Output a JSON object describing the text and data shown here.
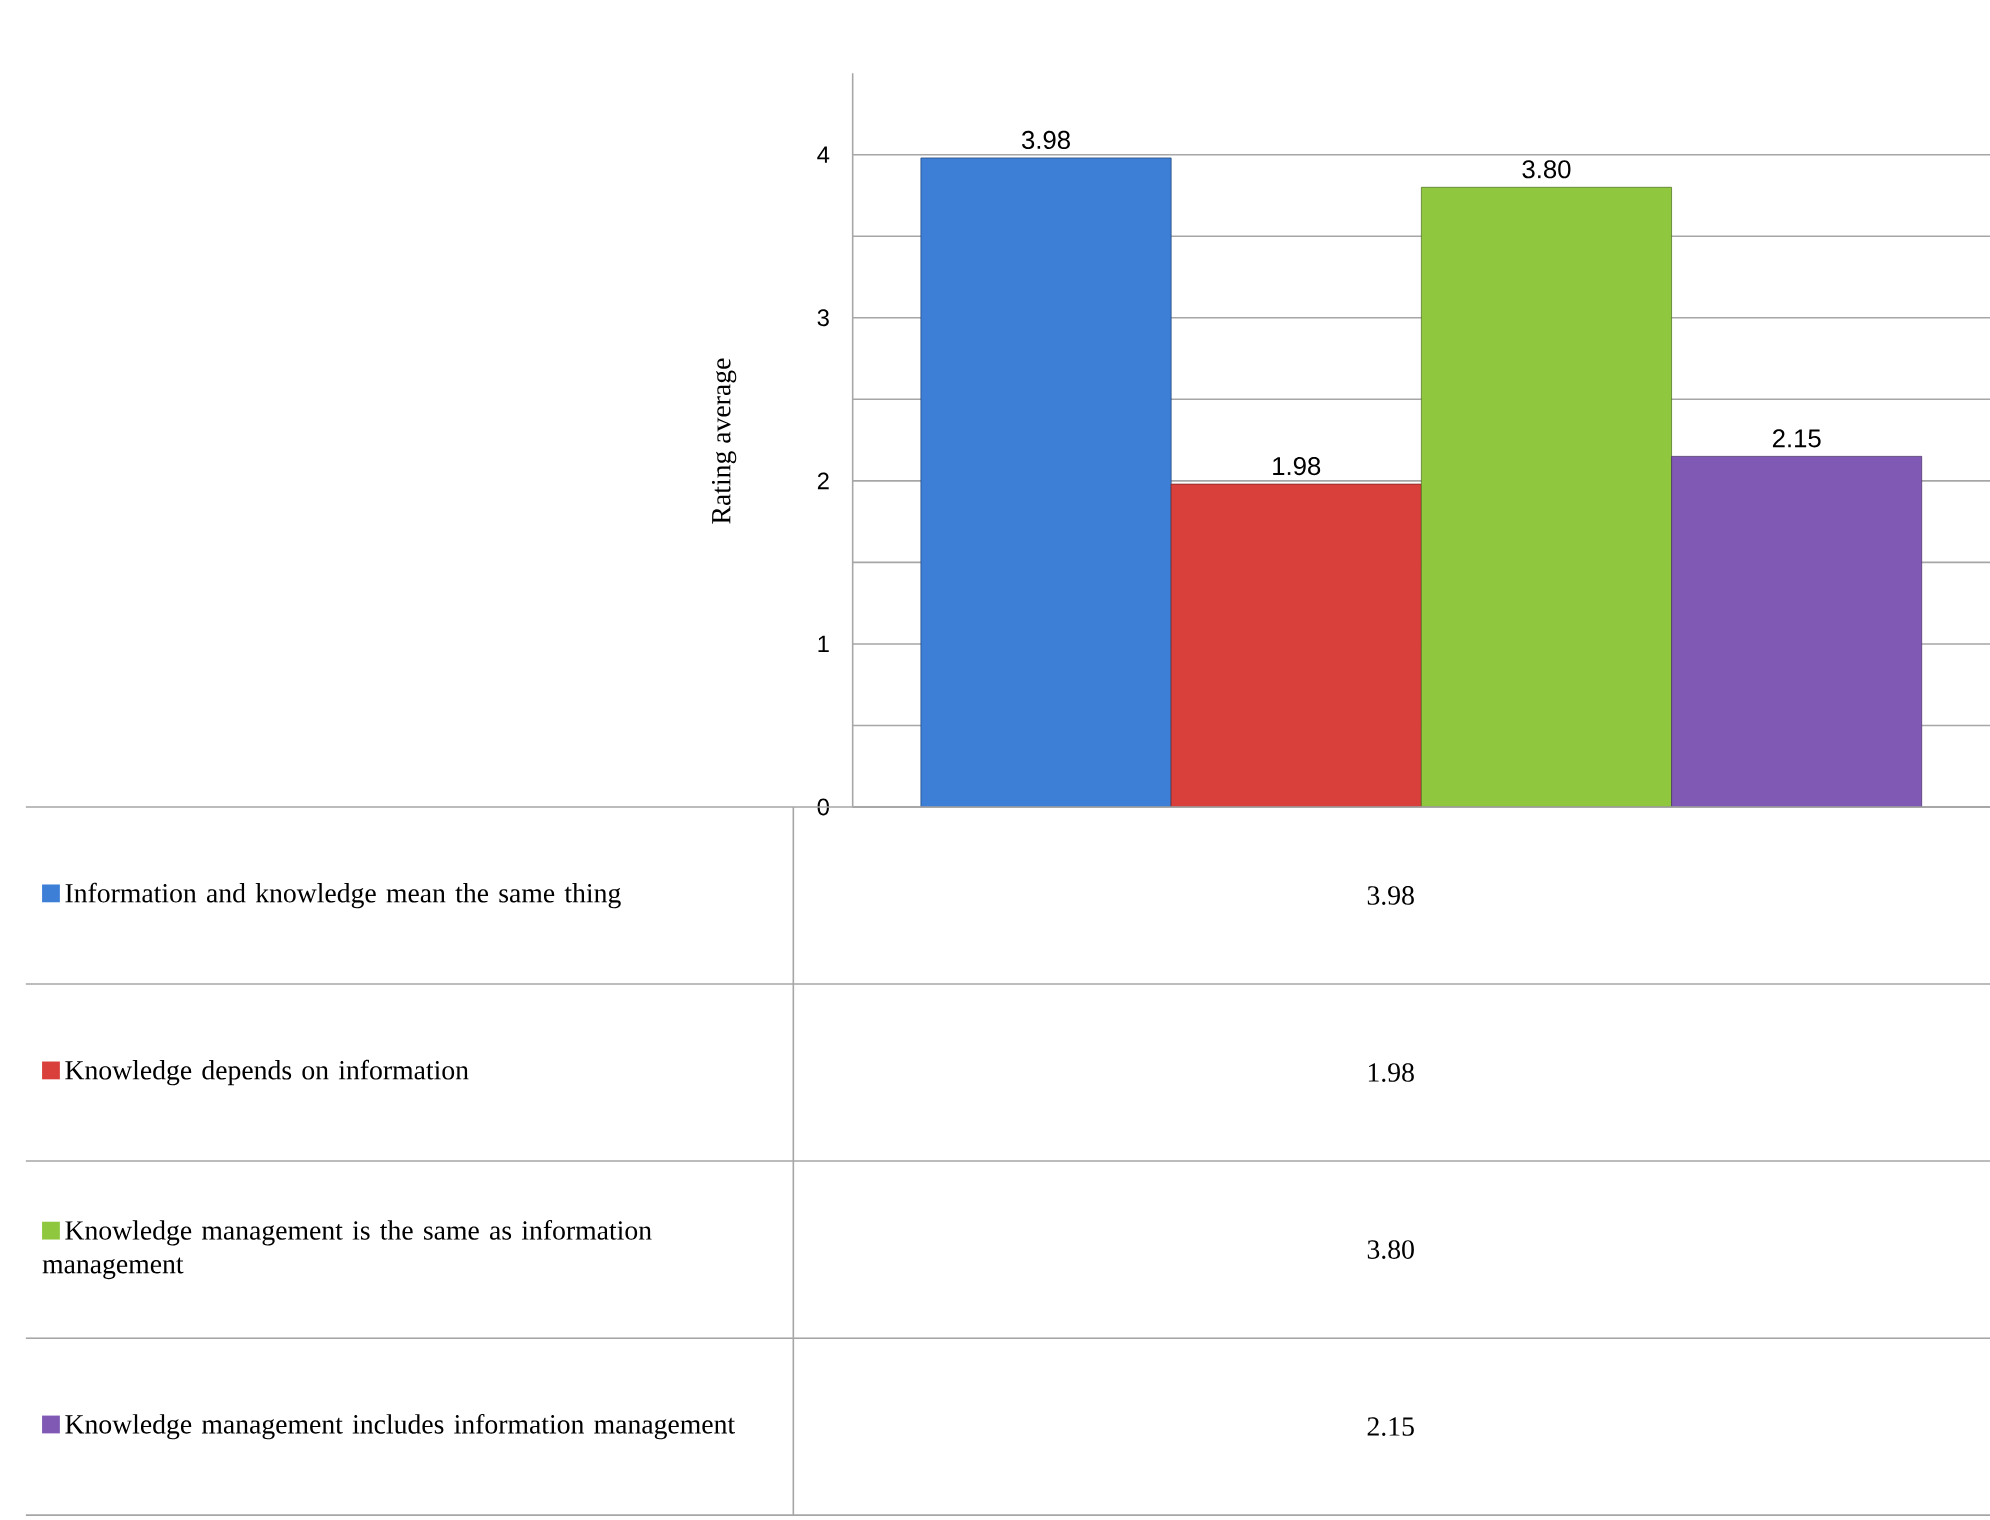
{
  "chart_data": {
    "type": "bar",
    "ylabel": "Rating average",
    "categories": [
      null
    ],
    "series": [
      {
        "name": "Information and knowledge mean the same thing",
        "color": "#3d7fd6",
        "values": [
          3.98
        ],
        "value_labels": [
          "3.98"
        ]
      },
      {
        "name": "Knowledge depends on information",
        "color": "#d9403b",
        "values": [
          1.98
        ],
        "value_labels": [
          "1.98"
        ]
      },
      {
        "name": "Knowledge management is the same as information management",
        "color": "#8fc73e",
        "values": [
          3.8
        ],
        "value_labels": [
          "3.80"
        ]
      },
      {
        "name": "Knowledge management includes information management",
        "color": "#8059b5",
        "values": [
          2.15
        ],
        "value_labels": [
          "2.15"
        ]
      }
    ],
    "ylim": [
      0,
      4.5
    ],
    "yticks": [
      0,
      {
        "value": 0.5,
        "label": null
      },
      1,
      {
        "value": 1.5,
        "label": null
      },
      2,
      {
        "value": 2.5,
        "label": null
      },
      3,
      {
        "value": 3.5,
        "label": null
      },
      4
    ],
    "grid": "y",
    "legend": "bottom"
  }
}
